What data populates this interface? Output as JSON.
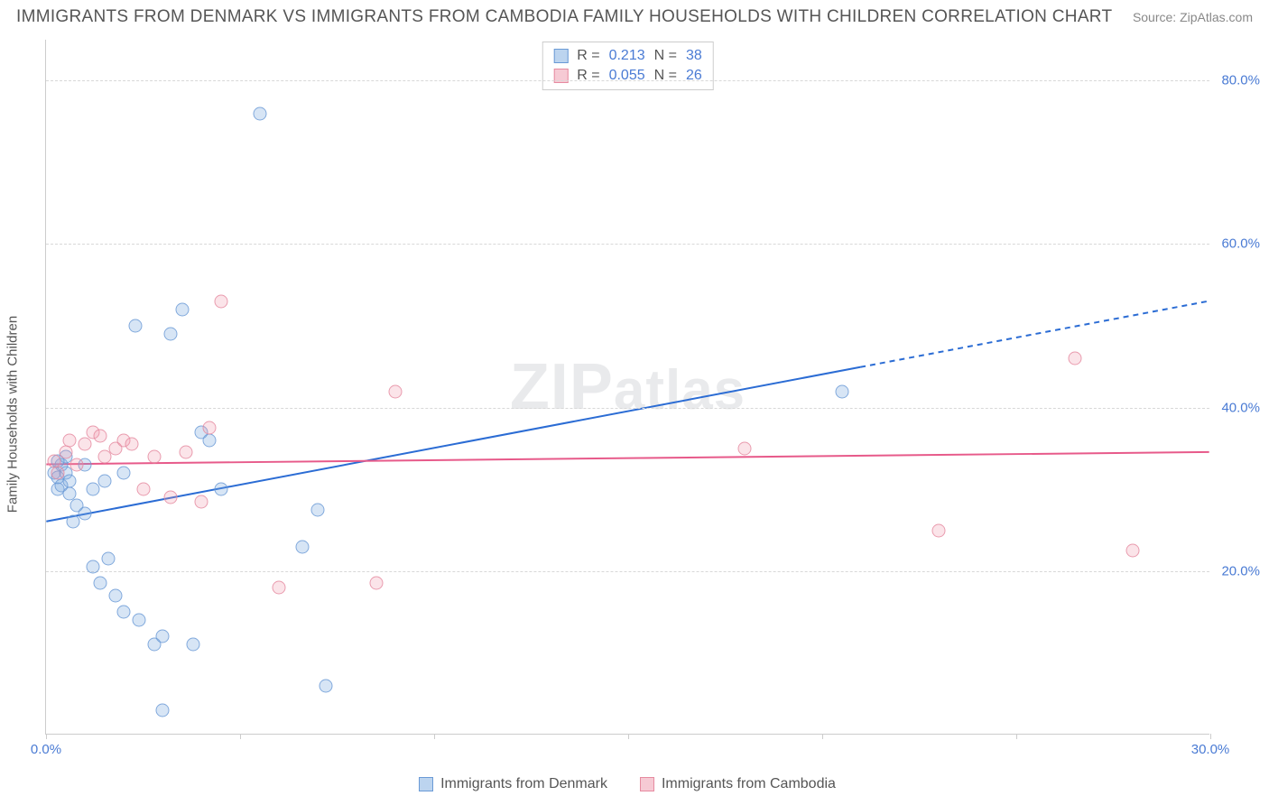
{
  "header": {
    "title": "IMMIGRANTS FROM DENMARK VS IMMIGRANTS FROM CAMBODIA FAMILY HOUSEHOLDS WITH CHILDREN CORRELATION CHART",
    "source": "Source: ZipAtlas.com"
  },
  "chart": {
    "type": "scatter",
    "ylabel": "Family Households with Children",
    "watermark": "ZIPatlas",
    "background_color": "#ffffff",
    "grid_color": "#d8d8d8",
    "axis_color": "#cccccc",
    "tick_color": "#4a7bd4",
    "label_color": "#555555",
    "point_radius": 7.5,
    "xlim": [
      0,
      30
    ],
    "ylim": [
      0,
      85
    ],
    "xticks": [
      0,
      5,
      10,
      15,
      20,
      25,
      30
    ],
    "xtick_labels": [
      "0.0%",
      "",
      "",
      "",
      "",
      "",
      "30.0%"
    ],
    "yticks": [
      20,
      40,
      60,
      80
    ],
    "ytick_labels": [
      "20.0%",
      "40.0%",
      "60.0%",
      "80.0%"
    ],
    "stats": [
      {
        "series": 0,
        "r_label": "R =",
        "r": "0.213",
        "n_label": "N =",
        "n": "38"
      },
      {
        "series": 1,
        "r_label": "R =",
        "r": "0.055",
        "n_label": "N =",
        "n": "26"
      }
    ],
    "series": [
      {
        "label": "Immigrants from Denmark",
        "fill_color": "rgba(122,169,224,0.35)",
        "stroke_color": "#6a9ad6",
        "line_color": "#2b6cd4",
        "line_width": 2,
        "trend": {
          "x1": 0,
          "y1": 26,
          "x2": 30,
          "y2": 53,
          "solid_until_x": 21
        },
        "points": [
          [
            0.2,
            32
          ],
          [
            0.3,
            30
          ],
          [
            0.3,
            31.5
          ],
          [
            0.4,
            33
          ],
          [
            0.4,
            30.5
          ],
          [
            0.5,
            34
          ],
          [
            0.5,
            32
          ],
          [
            0.6,
            31
          ],
          [
            0.6,
            29.5
          ],
          [
            0.7,
            26
          ],
          [
            0.8,
            28
          ],
          [
            1.0,
            33
          ],
          [
            1.0,
            27
          ],
          [
            1.2,
            30
          ],
          [
            1.2,
            20.5
          ],
          [
            1.4,
            18.5
          ],
          [
            1.5,
            31
          ],
          [
            1.6,
            21.5
          ],
          [
            1.8,
            17
          ],
          [
            2.0,
            32
          ],
          [
            2.0,
            15
          ],
          [
            2.3,
            50
          ],
          [
            2.4,
            14
          ],
          [
            2.8,
            11
          ],
          [
            3.0,
            3
          ],
          [
            3.0,
            12
          ],
          [
            3.2,
            49
          ],
          [
            3.5,
            52
          ],
          [
            3.8,
            11
          ],
          [
            4.0,
            37
          ],
          [
            4.2,
            36
          ],
          [
            4.5,
            30
          ],
          [
            5.5,
            76
          ],
          [
            6.6,
            23
          ],
          [
            7.0,
            27.5
          ],
          [
            7.2,
            6
          ],
          [
            20.5,
            42
          ],
          [
            0.3,
            33.5
          ]
        ]
      },
      {
        "label": "Immigrants from Cambodia",
        "fill_color": "rgba(238,150,170,0.30)",
        "stroke_color": "#e68aa0",
        "line_color": "#e75a8a",
        "line_width": 2,
        "trend": {
          "x1": 0,
          "y1": 33,
          "x2": 30,
          "y2": 34.5,
          "solid_until_x": 30
        },
        "points": [
          [
            0.2,
            33.5
          ],
          [
            0.3,
            32
          ],
          [
            0.5,
            34.5
          ],
          [
            0.6,
            36
          ],
          [
            0.8,
            33
          ],
          [
            1.0,
            35.5
          ],
          [
            1.2,
            37
          ],
          [
            1.4,
            36.5
          ],
          [
            1.5,
            34
          ],
          [
            1.8,
            35
          ],
          [
            2.0,
            36
          ],
          [
            2.2,
            35.5
          ],
          [
            2.5,
            30
          ],
          [
            2.8,
            34
          ],
          [
            3.2,
            29
          ],
          [
            3.6,
            34.5
          ],
          [
            4.0,
            28.5
          ],
          [
            4.2,
            37.5
          ],
          [
            4.5,
            53
          ],
          [
            6.0,
            18
          ],
          [
            8.5,
            18.5
          ],
          [
            9.0,
            42
          ],
          [
            18.0,
            35
          ],
          [
            23.0,
            25
          ],
          [
            26.5,
            46
          ],
          [
            28.0,
            22.5
          ]
        ]
      }
    ],
    "legend": [
      {
        "series": 0,
        "label": "Immigrants from Denmark"
      },
      {
        "series": 1,
        "label": "Immigrants from Cambodia"
      }
    ]
  }
}
